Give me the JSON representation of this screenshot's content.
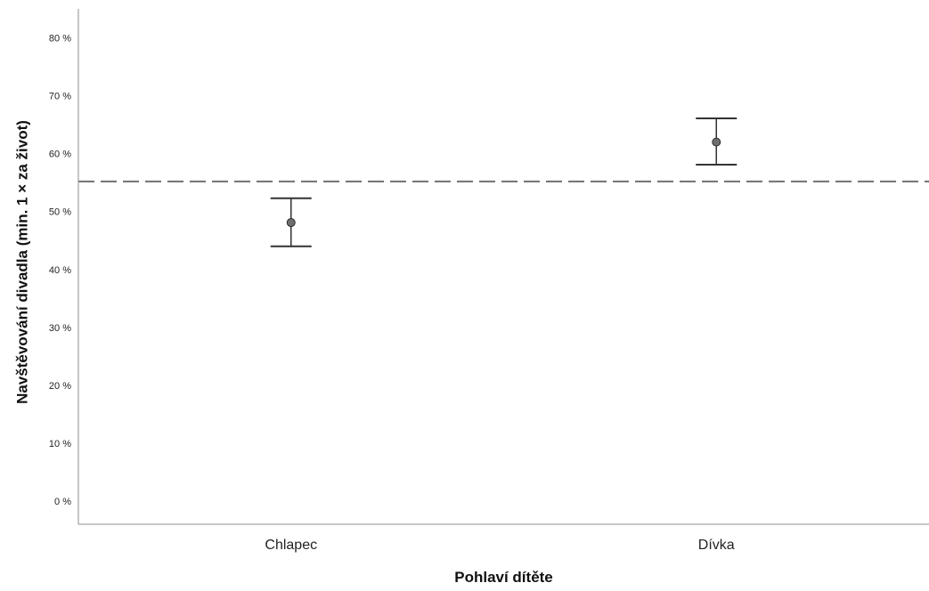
{
  "chart_data": {
    "type": "scatter",
    "subtype": "error-bar",
    "title": "",
    "xlabel": "Pohlaví dítěte",
    "ylabel": "Navštěvování divadla (min. 1 × za život)",
    "categories": [
      "Chlapec",
      "Dívka"
    ],
    "series": [
      {
        "values": [
          48.1,
          62.0
        ],
        "error_low": [
          44.0,
          58.1
        ],
        "error_high": [
          52.3,
          66.1
        ]
      }
    ],
    "reference_line": {
      "y": 55.2,
      "style": "dashed"
    },
    "ylim": [
      -4,
      85
    ],
    "y_ticks": [
      0,
      10,
      20,
      30,
      40,
      50,
      60,
      70,
      80
    ],
    "y_tick_labels": [
      "0 %",
      "10 %",
      "20 %",
      "30 %",
      "40 %",
      "50 %",
      "60 %",
      "70 %",
      "80 %"
    ],
    "grid": false,
    "legend": "none",
    "colors": {
      "marker_fill": "#6e6e6e",
      "marker_stroke": "#2b2b2b",
      "error_bar": "#333333",
      "reference_line": "#707070",
      "axis": "#8c8c8c"
    }
  }
}
